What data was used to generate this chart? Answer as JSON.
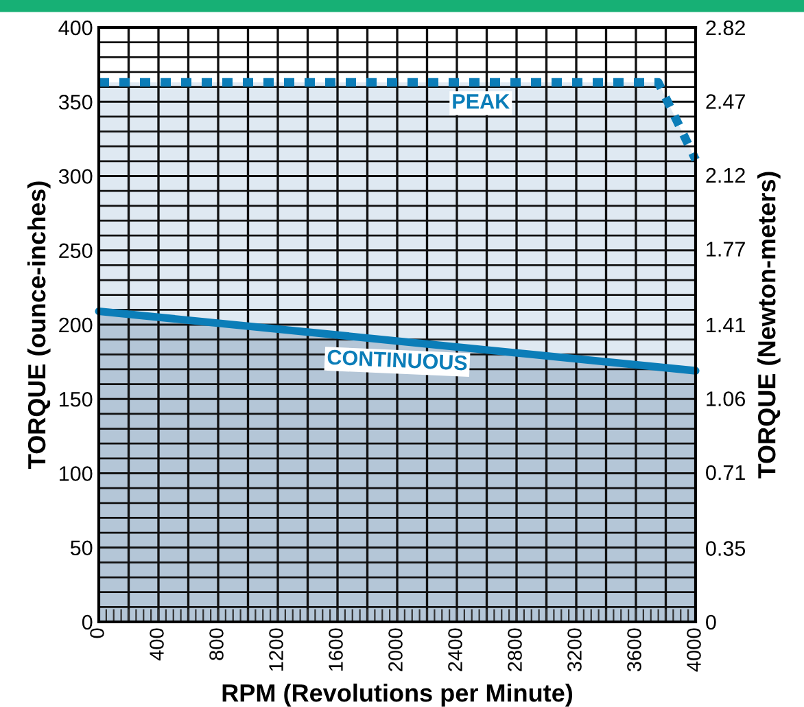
{
  "chart_data": {
    "type": "area",
    "xlabel": "RPM (Revolutions per Minute)",
    "ylabel": "TORQUE (ounce-inches)",
    "y2label": "TORQUE (Newton-meters)",
    "series": [
      {
        "name": "PEAK",
        "color": "#dfe9f2",
        "line_style": "dotted",
        "x": [
          0,
          3750,
          4000
        ],
        "values": [
          363,
          363,
          311
        ]
      },
      {
        "name": "CONTINUOUS",
        "color": "#b4c6d7",
        "line_style": "solid",
        "x": [
          0,
          4000
        ],
        "values": [
          209,
          169
        ]
      }
    ],
    "xlim": [
      0,
      4000
    ],
    "xticks": [
      0,
      400,
      800,
      1200,
      1600,
      2000,
      2400,
      2800,
      3200,
      3600,
      4000
    ],
    "ylim": [
      0,
      400
    ],
    "yticks": [
      0,
      50,
      100,
      150,
      200,
      250,
      300,
      350,
      400
    ],
    "y2lim": [
      0,
      2.82
    ],
    "y2ticks": [
      0,
      0.35,
      0.71,
      1.06,
      1.41,
      1.77,
      2.12,
      2.47,
      2.82
    ],
    "grid": true,
    "legend": false
  }
}
